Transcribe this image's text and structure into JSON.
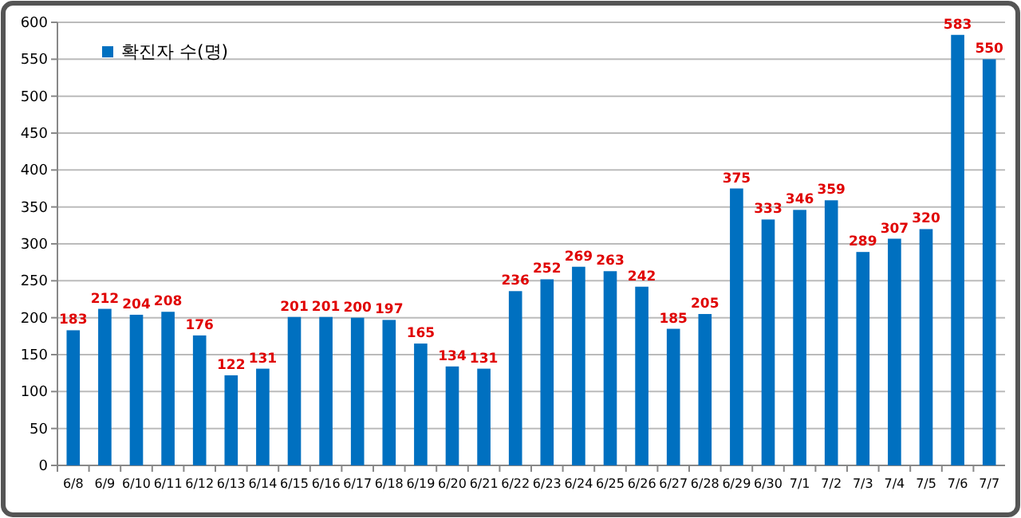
{
  "chart_data": {
    "type": "bar",
    "categories": [
      "6/8",
      "6/9",
      "6/10",
      "6/11",
      "6/12",
      "6/13",
      "6/14",
      "6/15",
      "6/16",
      "6/17",
      "6/18",
      "6/19",
      "6/20",
      "6/21",
      "6/22",
      "6/23",
      "6/24",
      "6/25",
      "6/26",
      "6/27",
      "6/28",
      "6/29",
      "6/30",
      "7/1",
      "7/2",
      "7/3",
      "7/4",
      "7/5",
      "7/6",
      "7/7"
    ],
    "series": [
      {
        "name": "확진자 수(명)",
        "color": "#0070c0",
        "values": [
          183,
          212,
          204,
          208,
          176,
          122,
          131,
          201,
          201,
          200,
          197,
          165,
          134,
          131,
          236,
          252,
          269,
          263,
          242,
          185,
          205,
          375,
          333,
          346,
          359,
          289,
          307,
          320,
          583,
          550
        ]
      }
    ],
    "ylim": [
      0,
      600
    ],
    "yticks": [
      0,
      50,
      100,
      150,
      200,
      250,
      300,
      350,
      400,
      450,
      500,
      550,
      600
    ],
    "grid": "y",
    "legend": "top left",
    "data_labels": true
  }
}
